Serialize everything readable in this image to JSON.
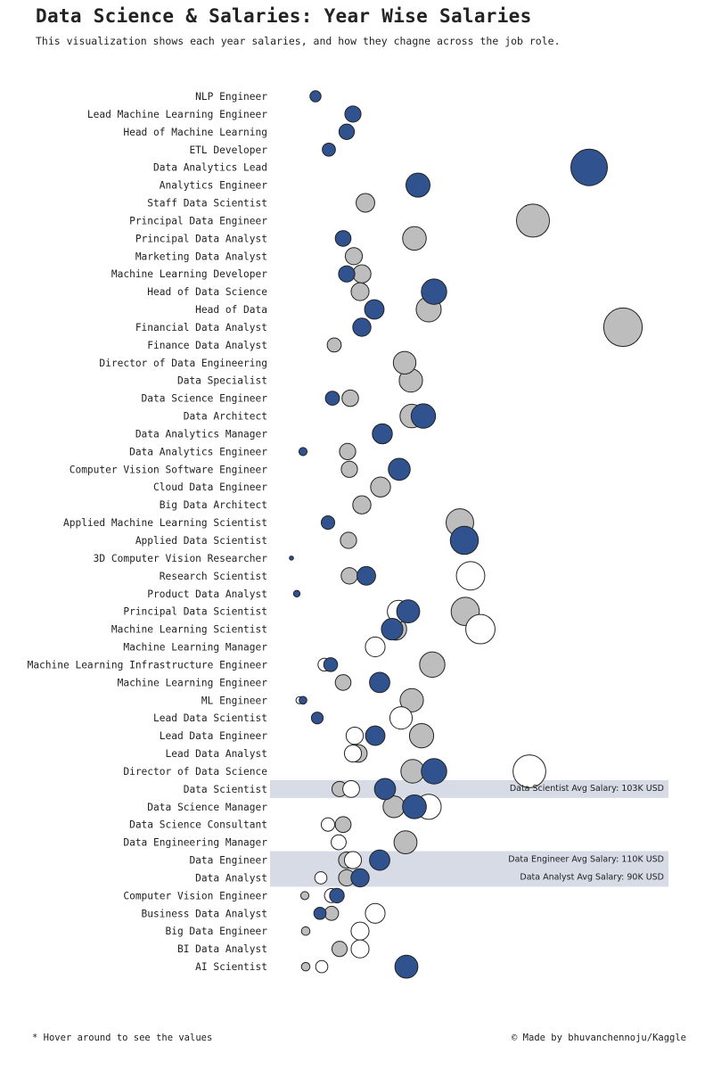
{
  "title": "Data Science & Salaries: Year Wise Salaries",
  "subtitle": "This visualization shows each year salaries, and how they chagne across the job role.",
  "footer_left": "* Hover around to see the values",
  "footer_right": "© Made by bhuvanchennoju/Kaggle",
  "colors": {
    "y2020": "#ffffff",
    "y2021": "#bdbdbd",
    "y2022": "#30528f",
    "highlight": "#d6dbe6",
    "stroke": "#222222"
  },
  "chart_data": {
    "type": "scatter",
    "title": "Data Science & Salaries: Year Wise Salaries",
    "xlim": [
      0,
      450
    ],
    "size_encodes": "average salary",
    "series_colors": [
      "#ffffff",
      "#bdbdbd",
      "#30528f"
    ],
    "categories": [
      "NLP Engineer",
      "Lead Machine Learning Engineer",
      "Head of Machine Learning",
      "ETL Developer",
      "Data Analytics Lead",
      "Analytics Engineer",
      "Staff Data Scientist",
      "Principal Data Engineer",
      "Principal Data Analyst",
      "Marketing Data Analyst",
      "Machine Learning Developer",
      "Head of Data Science",
      "Head of Data",
      "Financial Data Analyst",
      "Finance Data Analyst",
      "Director of Data Engineering",
      "Data Specialist",
      "Data Science Engineer",
      "Data Architect",
      "Data Analytics Manager",
      "Data Analytics Engineer",
      "Computer Vision Software Engineer",
      "Cloud Data Engineer",
      "Big Data Architect",
      "Applied Machine Learning Scientist",
      "Applied Data Scientist",
      "3D Computer Vision Researcher",
      "Research Scientist",
      "Product Data Analyst",
      "Principal Data Scientist",
      "Machine Learning Scientist",
      "Machine Learning Manager",
      "Machine Learning Infrastructure Engineer",
      "Machine Learning Engineer",
      "ML Engineer",
      "Lead Data Scientist",
      "Lead Data Engineer",
      "Lead Data Analyst",
      "Director of Data Science",
      "Data Scientist",
      "Data Science Manager",
      "Data Science Consultant",
      "Data Engineering Manager",
      "Data Engineer",
      "Data Analyst",
      "Computer Vision Engineer",
      "Business Data Analyst",
      "Big Data Engineer",
      "BI Data Analyst",
      "AI Scientist"
    ],
    "points": [
      {
        "row": 0,
        "year": 2022,
        "x": 37,
        "salary": 37
      },
      {
        "row": 1,
        "year": 2022,
        "x": 79,
        "salary": 79
      },
      {
        "row": 2,
        "year": 2022,
        "x": 72,
        "salary": 72
      },
      {
        "row": 3,
        "year": 2022,
        "x": 52,
        "salary": 52
      },
      {
        "row": 4,
        "year": 2022,
        "x": 344,
        "salary": 405
      },
      {
        "row": 5,
        "year": 2022,
        "x": 152,
        "salary": 175
      },
      {
        "row": 6,
        "year": 2021,
        "x": 93,
        "salary": 105
      },
      {
        "row": 7,
        "year": 2021,
        "x": 281,
        "salary": 330
      },
      {
        "row": 8,
        "year": 2021,
        "x": 148,
        "salary": 170
      },
      {
        "row": 8,
        "year": 2022,
        "x": 68,
        "salary": 75
      },
      {
        "row": 9,
        "year": 2021,
        "x": 80,
        "salary": 88
      },
      {
        "row": 10,
        "year": 2021,
        "x": 89,
        "salary": 100
      },
      {
        "row": 10,
        "year": 2022,
        "x": 72,
        "salary": 80
      },
      {
        "row": 11,
        "year": 2021,
        "x": 87,
        "salary": 97
      },
      {
        "row": 11,
        "year": 2022,
        "x": 170,
        "salary": 195
      },
      {
        "row": 12,
        "year": 2021,
        "x": 164,
        "salary": 190
      },
      {
        "row": 12,
        "year": 2022,
        "x": 103,
        "salary": 115
      },
      {
        "row": 13,
        "year": 2021,
        "x": 382,
        "salary": 450
      },
      {
        "row": 13,
        "year": 2022,
        "x": 89,
        "salary": 100
      },
      {
        "row": 14,
        "year": 2021,
        "x": 58,
        "salary": 60
      },
      {
        "row": 15,
        "year": 2021,
        "x": 137,
        "salary": 155
      },
      {
        "row": 16,
        "year": 2021,
        "x": 144,
        "salary": 165
      },
      {
        "row": 17,
        "year": 2021,
        "x": 76,
        "salary": 83
      },
      {
        "row": 17,
        "year": 2022,
        "x": 56,
        "salary": 60
      },
      {
        "row": 18,
        "year": 2021,
        "x": 145,
        "salary": 168
      },
      {
        "row": 18,
        "year": 2022,
        "x": 158,
        "salary": 180
      },
      {
        "row": 19,
        "year": 2021,
        "x": 112,
        "salary": 120
      },
      {
        "row": 19,
        "year": 2022,
        "x": 112,
        "salary": 120
      },
      {
        "row": 20,
        "year": 2021,
        "x": 73,
        "salary": 80
      },
      {
        "row": 20,
        "year": 2022,
        "x": 23,
        "salary": 20
      },
      {
        "row": 21,
        "year": 2021,
        "x": 75,
        "salary": 80
      },
      {
        "row": 21,
        "year": 2022,
        "x": 131,
        "salary": 145
      },
      {
        "row": 22,
        "year": 2021,
        "x": 110,
        "salary": 120
      },
      {
        "row": 23,
        "year": 2021,
        "x": 89,
        "salary": 100
      },
      {
        "row": 24,
        "year": 2021,
        "x": 199,
        "salary": 230
      },
      {
        "row": 24,
        "year": 2022,
        "x": 51,
        "salary": 55
      },
      {
        "row": 25,
        "year": 2021,
        "x": 74,
        "salary": 80
      },
      {
        "row": 25,
        "year": 2022,
        "x": 204,
        "salary": 238
      },
      {
        "row": 26,
        "year": 2022,
        "x": 10,
        "salary": 5
      },
      {
        "row": 27,
        "year": 2020,
        "x": 211,
        "salary": 245
      },
      {
        "row": 27,
        "year": 2021,
        "x": 75,
        "salary": 82
      },
      {
        "row": 27,
        "year": 2022,
        "x": 94,
        "salary": 105
      },
      {
        "row": 28,
        "year": 2022,
        "x": 16,
        "salary": 13
      },
      {
        "row": 29,
        "year": 2020,
        "x": 130,
        "salary": 148
      },
      {
        "row": 29,
        "year": 2021,
        "x": 205,
        "salary": 240
      },
      {
        "row": 29,
        "year": 2022,
        "x": 141,
        "salary": 160
      },
      {
        "row": 30,
        "year": 2020,
        "x": 222,
        "salary": 260
      },
      {
        "row": 30,
        "year": 2021,
        "x": 127,
        "salary": 145
      },
      {
        "row": 30,
        "year": 2022,
        "x": 123,
        "salary": 140
      },
      {
        "row": 31,
        "year": 2020,
        "x": 104,
        "salary": 118
      },
      {
        "row": 32,
        "year": 2020,
        "x": 47,
        "salary": 50
      },
      {
        "row": 32,
        "year": 2021,
        "x": 168,
        "salary": 195
      },
      {
        "row": 32,
        "year": 2022,
        "x": 54,
        "salary": 58
      },
      {
        "row": 33,
        "year": 2021,
        "x": 68,
        "salary": 75
      },
      {
        "row": 33,
        "year": 2022,
        "x": 109,
        "salary": 125
      },
      {
        "row": 34,
        "year": 2020,
        "x": 19,
        "salary": 15
      },
      {
        "row": 34,
        "year": 2021,
        "x": 145,
        "salary": 165
      },
      {
        "row": 34,
        "year": 2022,
        "x": 23,
        "salary": 18
      },
      {
        "row": 35,
        "year": 2020,
        "x": 133,
        "salary": 152
      },
      {
        "row": 35,
        "year": 2022,
        "x": 39,
        "salary": 42
      },
      {
        "row": 36,
        "year": 2020,
        "x": 81,
        "salary": 90
      },
      {
        "row": 36,
        "year": 2021,
        "x": 156,
        "salary": 178
      },
      {
        "row": 36,
        "year": 2022,
        "x": 104,
        "salary": 115
      },
      {
        "row": 37,
        "year": 2020,
        "x": 79,
        "salary": 88
      },
      {
        "row": 37,
        "year": 2021,
        "x": 85,
        "salary": 95
      },
      {
        "row": 38,
        "year": 2020,
        "x": 277,
        "salary": 325
      },
      {
        "row": 38,
        "year": 2021,
        "x": 146,
        "salary": 168
      },
      {
        "row": 38,
        "year": 2022,
        "x": 170,
        "salary": 195
      },
      {
        "row": 39,
        "year": 2020,
        "x": 77,
        "salary": 85
      },
      {
        "row": 39,
        "year": 2021,
        "x": 64,
        "salary": 70
      },
      {
        "row": 39,
        "year": 2022,
        "x": 115,
        "salary": 135
      },
      {
        "row": 40,
        "year": 2020,
        "x": 164,
        "salary": 190
      },
      {
        "row": 40,
        "year": 2021,
        "x": 125,
        "salary": 143
      },
      {
        "row": 40,
        "year": 2022,
        "x": 148,
        "salary": 172
      },
      {
        "row": 41,
        "year": 2020,
        "x": 51,
        "salary": 55
      },
      {
        "row": 41,
        "year": 2021,
        "x": 68,
        "salary": 76
      },
      {
        "row": 42,
        "year": 2020,
        "x": 63,
        "salary": 68
      },
      {
        "row": 42,
        "year": 2021,
        "x": 138,
        "salary": 160
      },
      {
        "row": 43,
        "year": 2020,
        "x": 79,
        "salary": 88
      },
      {
        "row": 43,
        "year": 2021,
        "x": 72,
        "salary": 80
      },
      {
        "row": 43,
        "year": 2022,
        "x": 109,
        "salary": 125
      },
      {
        "row": 44,
        "year": 2020,
        "x": 43,
        "salary": 45
      },
      {
        "row": 44,
        "year": 2021,
        "x": 72,
        "salary": 80
      },
      {
        "row": 44,
        "year": 2022,
        "x": 87,
        "salary": 100
      },
      {
        "row": 45,
        "year": 2020,
        "x": 55,
        "salary": 60
      },
      {
        "row": 45,
        "year": 2021,
        "x": 25,
        "salary": 20
      },
      {
        "row": 45,
        "year": 2022,
        "x": 61,
        "salary": 65
      },
      {
        "row": 46,
        "year": 2020,
        "x": 104,
        "salary": 118
      },
      {
        "row": 46,
        "year": 2021,
        "x": 55,
        "salary": 60
      },
      {
        "row": 46,
        "year": 2022,
        "x": 42,
        "salary": 45
      },
      {
        "row": 47,
        "year": 2020,
        "x": 87,
        "salary": 98
      },
      {
        "row": 47,
        "year": 2021,
        "x": 26,
        "salary": 22
      },
      {
        "row": 48,
        "year": 2020,
        "x": 87,
        "salary": 98
      },
      {
        "row": 48,
        "year": 2021,
        "x": 64,
        "salary": 70
      },
      {
        "row": 49,
        "year": 2020,
        "x": 44,
        "salary": 45
      },
      {
        "row": 49,
        "year": 2021,
        "x": 26,
        "salary": 22
      },
      {
        "row": 49,
        "year": 2022,
        "x": 139,
        "salary": 160
      }
    ],
    "highlights": [
      {
        "row": 39,
        "label": "Data Scientist Avg Salary: 103K USD"
      },
      {
        "row": 43,
        "label": "Data Engineer Avg Salary: 110K USD"
      },
      {
        "row": 44,
        "label": "Data Analyst Avg Salary: 90K USD"
      }
    ]
  }
}
